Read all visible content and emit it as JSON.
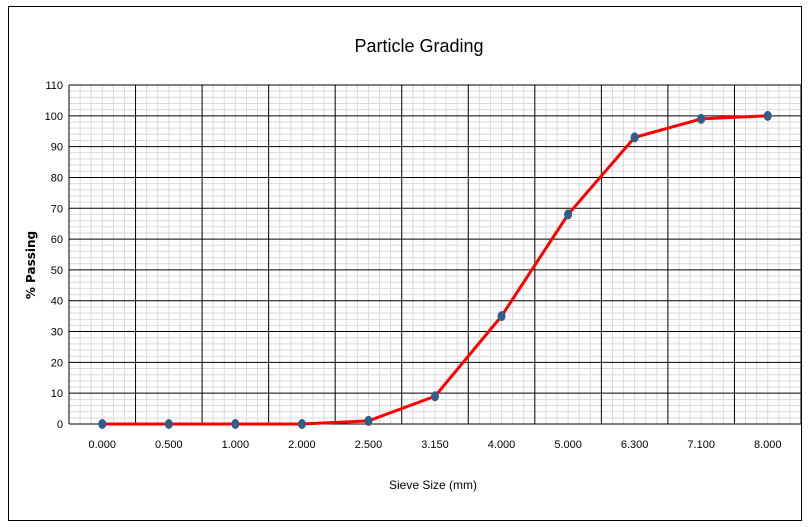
{
  "chart_data": {
    "type": "line",
    "title": "Particle Grading",
    "xlabel": "Sieve Size (mm)",
    "ylabel": "% Passing",
    "categories": [
      "0.000",
      "0.500",
      "1.000",
      "2.000",
      "2.500",
      "3.150",
      "4.000",
      "5.000",
      "6.300",
      "7.100",
      "8.000"
    ],
    "series": [
      {
        "values": [
          0,
          0,
          0,
          0,
          1,
          9,
          35,
          68,
          93,
          99,
          100
        ]
      }
    ],
    "ylim": [
      0,
      110
    ],
    "yticks": [
      "0",
      "10",
      "20",
      "30",
      "40",
      "50",
      "60",
      "70",
      "80",
      "90",
      "100",
      "110"
    ],
    "grid": true,
    "line_color": "#ff0000",
    "marker_color": "#2e5f8a",
    "grid_major_color": "#000000",
    "grid_minor_color": "#d9d9d9"
  }
}
